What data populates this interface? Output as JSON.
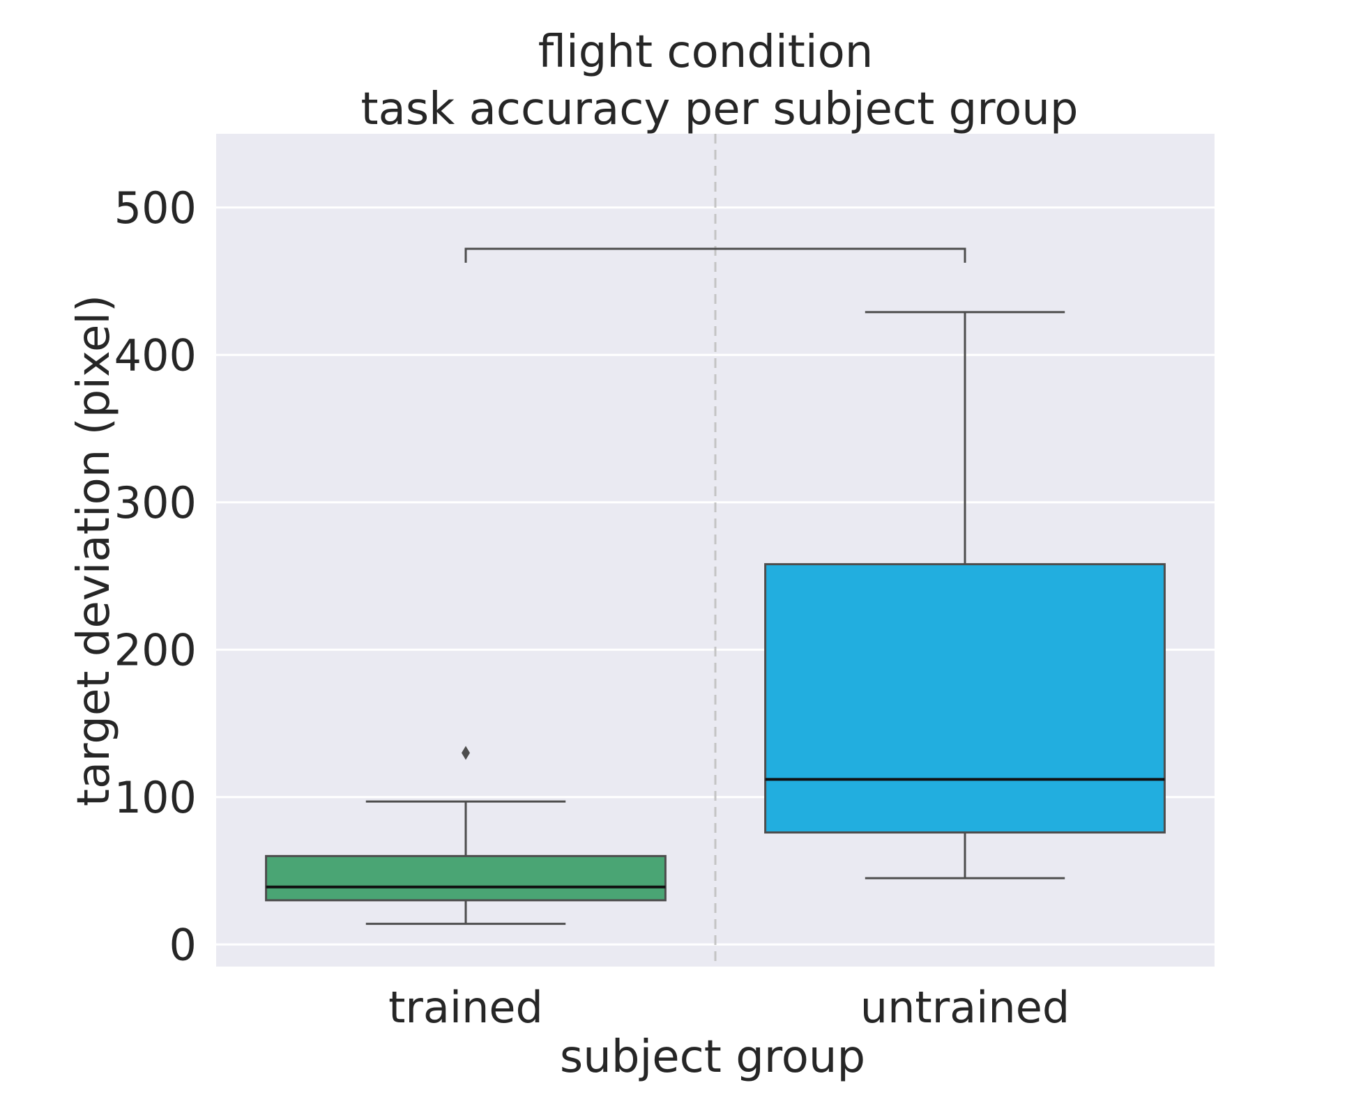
{
  "chart_data": {
    "type": "box",
    "title": "flight condition",
    "subtitle": "task accuracy per subject group",
    "xlabel": "subject group",
    "ylabel": "target deviation (pixel)",
    "ylim": [
      -15,
      550
    ],
    "yticks": [
      0,
      100,
      200,
      300,
      400,
      500
    ],
    "grid": true,
    "categories": [
      "trained",
      "untrained"
    ],
    "series": [
      {
        "category": "trained",
        "whisker_low": 14,
        "q1": 30,
        "median": 39,
        "q3": 60,
        "whisker_high": 97,
        "outliers": [
          130
        ],
        "color": "#4aa574"
      },
      {
        "category": "untrained",
        "whisker_low": 45,
        "q1": 76,
        "median": 112,
        "q3": 258,
        "whisker_high": 429,
        "outliers": [],
        "color": "#22aedf"
      }
    ],
    "significance_bracket": {
      "between": [
        "trained",
        "untrained"
      ],
      "y": 472
    },
    "colors": {
      "plot_background": "#eaeaf2",
      "gridline": "#ffffff",
      "box_edge": "#4d4d4d",
      "median_line": "#111111",
      "divider": "#c4c4c4"
    }
  }
}
